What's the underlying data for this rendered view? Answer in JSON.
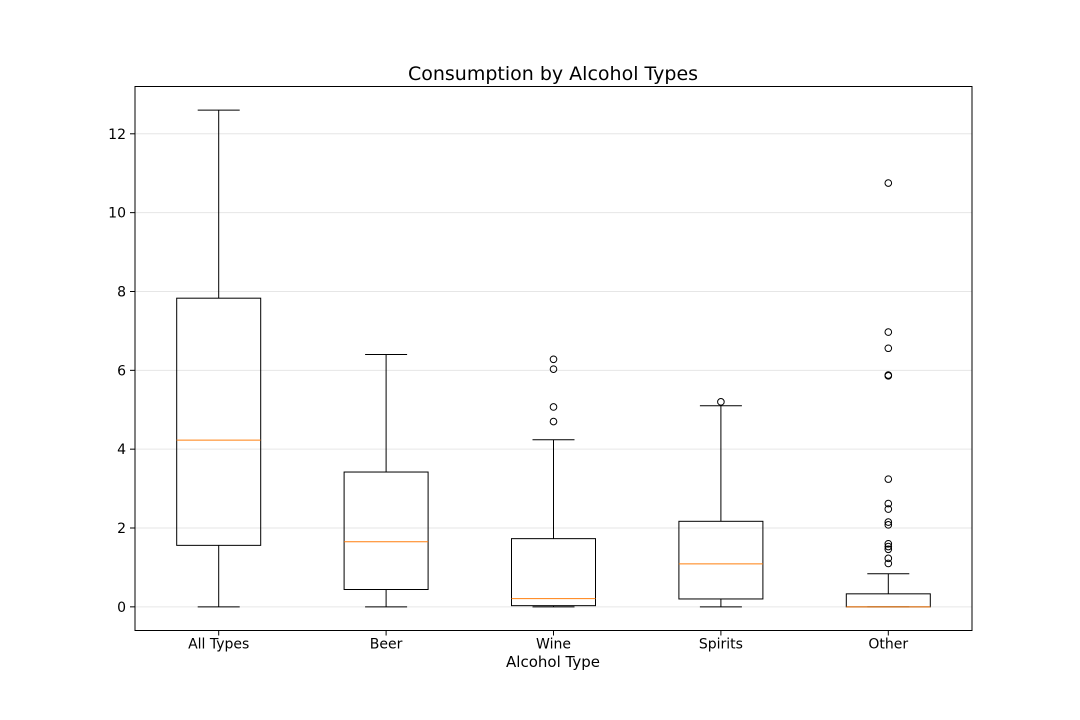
{
  "chart_data": {
    "type": "boxplot",
    "title": "Consumption by Alcohol Types",
    "xlabel": "Alcohol Type",
    "ylabel": "",
    "ylim": [
      -0.6,
      13.2
    ],
    "yticks": [
      0,
      2,
      4,
      6,
      8,
      10,
      12
    ],
    "ytick_labels": [
      "0",
      "2",
      "4",
      "6",
      "8",
      "10",
      "12"
    ],
    "grid": "horizontal",
    "colors": {
      "box": "#000000",
      "median": "#ff7f0e",
      "grid": "#e6e6e6"
    },
    "categories": [
      "All Types",
      "Beer",
      "Wine",
      "Spirits",
      "Other"
    ],
    "boxes": [
      {
        "label": "All Types",
        "whislo": 0.0,
        "q1": 1.56,
        "median": 4.23,
        "q3": 7.83,
        "whishi": 12.6,
        "fliers": []
      },
      {
        "label": "Beer",
        "whislo": 0.0,
        "q1": 0.44,
        "median": 1.65,
        "q3": 3.42,
        "whishi": 6.4,
        "fliers": []
      },
      {
        "label": "Wine",
        "whislo": 0.0,
        "q1": 0.03,
        "median": 0.21,
        "q3": 1.73,
        "whishi": 4.24,
        "fliers": [
          4.7,
          5.07,
          6.03,
          6.28
        ]
      },
      {
        "label": "Spirits",
        "whislo": 0.0,
        "q1": 0.2,
        "median": 1.09,
        "q3": 2.17,
        "whishi": 5.1,
        "fliers": [
          5.2
        ]
      },
      {
        "label": "Other",
        "whislo": 0.0,
        "q1": 0.0,
        "median": 0.0,
        "q3": 0.33,
        "whishi": 0.84,
        "fliers": [
          1.1,
          1.23,
          1.46,
          1.53,
          1.6,
          2.08,
          2.15,
          2.48,
          2.62,
          3.24,
          5.86,
          5.88,
          6.56,
          6.97,
          10.75
        ]
      }
    ]
  }
}
